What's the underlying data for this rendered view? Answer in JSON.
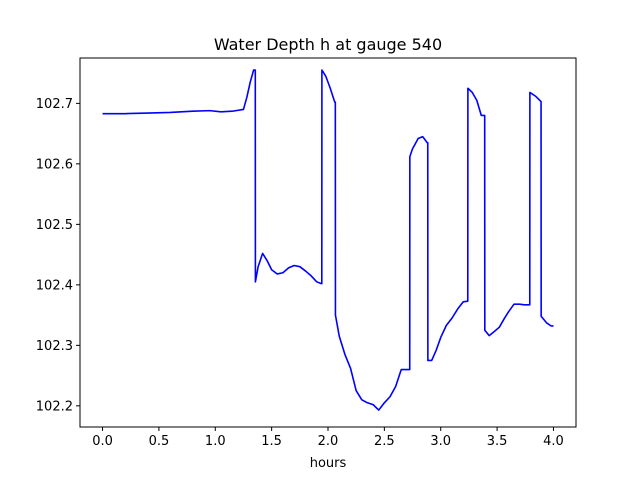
{
  "chart_data": {
    "type": "line",
    "title": "Water Depth h at gauge 540",
    "xlabel": "hours",
    "ylabel": "",
    "xlim": [
      -0.2,
      4.2
    ],
    "ylim": [
      102.165,
      102.775
    ],
    "xticks": [
      0.0,
      0.5,
      1.0,
      1.5,
      2.0,
      2.5,
      3.0,
      3.5,
      4.0
    ],
    "xtick_labels": [
      "0.0",
      "0.5",
      "1.0",
      "1.5",
      "2.0",
      "2.5",
      "3.0",
      "3.5",
      "4.0"
    ],
    "yticks": [
      102.2,
      102.3,
      102.4,
      102.5,
      102.6,
      102.7
    ],
    "ytick_labels": [
      "102.2",
      "102.3",
      "102.4",
      "102.5",
      "102.6",
      "102.7"
    ],
    "grid": false,
    "color": "#0000ff",
    "series": [
      {
        "name": "",
        "x": [
          0.0,
          0.2,
          0.4,
          0.6,
          0.8,
          0.95,
          1.05,
          1.15,
          1.25,
          1.28,
          1.31,
          1.34,
          1.355,
          1.356,
          1.38,
          1.42,
          1.46,
          1.5,
          1.55,
          1.6,
          1.65,
          1.7,
          1.75,
          1.8,
          1.85,
          1.9,
          1.94,
          1.945,
          1.946,
          1.98,
          2.02,
          2.06,
          2.065,
          2.066,
          2.1,
          2.15,
          2.2,
          2.25,
          2.3,
          2.35,
          2.4,
          2.45,
          2.5,
          2.55,
          2.6,
          2.65,
          2.7,
          2.725,
          2.726,
          2.75,
          2.8,
          2.84,
          2.88,
          2.885,
          2.886,
          2.92,
          2.96,
          3.0,
          3.05,
          3.1,
          3.15,
          3.2,
          3.24,
          3.241,
          3.28,
          3.32,
          3.36,
          3.39,
          3.391,
          3.43,
          3.47,
          3.52,
          3.56,
          3.6,
          3.65,
          3.7,
          3.74,
          3.79,
          3.791,
          3.84,
          3.89,
          3.891,
          3.94,
          3.98,
          4.0
        ],
        "y": [
          102.683,
          102.683,
          102.684,
          102.685,
          102.687,
          102.688,
          102.686,
          102.687,
          102.69,
          102.71,
          102.735,
          102.755,
          102.755,
          102.405,
          102.43,
          102.452,
          102.44,
          102.425,
          102.418,
          102.42,
          102.428,
          102.432,
          102.43,
          102.423,
          102.415,
          102.405,
          102.402,
          102.402,
          102.755,
          102.745,
          102.725,
          102.702,
          102.702,
          102.35,
          102.315,
          102.285,
          102.262,
          102.225,
          102.21,
          102.205,
          102.202,
          102.193,
          102.205,
          102.215,
          102.232,
          102.26,
          102.26,
          102.26,
          102.612,
          102.625,
          102.642,
          102.645,
          102.635,
          102.635,
          102.275,
          102.275,
          102.292,
          102.313,
          102.333,
          102.345,
          102.36,
          102.372,
          102.373,
          102.725,
          102.718,
          102.705,
          102.68,
          102.68,
          102.325,
          102.316,
          102.322,
          102.33,
          102.343,
          102.355,
          102.368,
          102.368,
          102.367,
          102.367,
          102.718,
          102.712,
          102.703,
          102.348,
          102.337,
          102.332,
          102.332
        ]
      }
    ]
  }
}
